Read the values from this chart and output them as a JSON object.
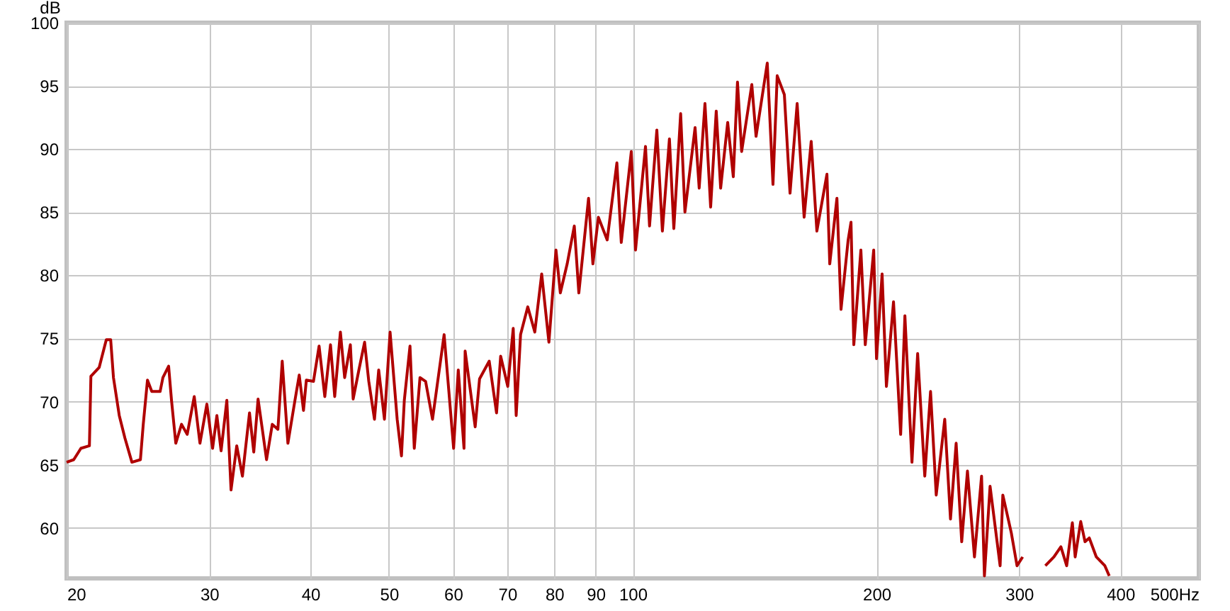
{
  "chart_data": {
    "type": "line",
    "ylabel": "dB",
    "log": "x",
    "grid": true,
    "color": "#b00000",
    "xlim": [
      20,
      500
    ],
    "xticks": [
      20,
      30,
      40,
      50,
      60,
      70,
      80,
      90,
      100,
      200,
      300,
      400,
      {
        "value": 500,
        "label": "500Hz"
      }
    ],
    "ylim": [
      56,
      100
    ],
    "yticks": [
      60,
      65,
      70,
      75,
      80,
      85,
      90,
      95,
      100
    ],
    "x": [
      20,
      20.41,
      20.83,
      21.34,
      21.43,
      21.94,
      22.39,
      22.67,
      22.85,
      23.23,
      23.61,
      24.08,
      24.67,
      24.87,
      25.17,
      25.48,
      26.09,
      26.3,
      26.73,
      26.95,
      27.28,
      27.73,
      28.18,
      28.75,
      29.22,
      29.8,
      30.29,
      30.66,
      31.03,
      31.54,
      31.92,
      32.44,
      32.97,
      33.64,
      34.05,
      34.47,
      34.89,
      35.31,
      35.89,
      36.47,
      36.92,
      37.52,
      38.28,
      38.75,
      39.22,
      39.54,
      40.35,
      41,
      41.67,
      42.35,
      42.86,
      43.56,
      44.09,
      44.81,
      45.17,
      45.91,
      46.66,
      47.22,
      47.99,
      48.57,
      49.37,
      50.17,
      51.19,
      51.82,
      52.24,
      53.09,
      53.74,
      54.62,
      55.5,
      56.6,
      58.5,
      60.1,
      60.9,
      61.9,
      62.1,
      63.9,
      64.7,
      66.5,
      67.9,
      68.7,
      70.1,
      71.2,
      71.8,
      72.7,
      74.2,
      75.7,
      77.2,
      78.8,
      80.4,
      81.4,
      83,
      84.7,
      85.8,
      88.2,
      89.3,
      90.7,
      93,
      95.6,
      96.8,
      99.6,
      100.8,
      103.7,
      104.9,
      107.1,
      108.8,
      111,
      112.4,
      114.6,
      116,
      119.4,
      120.8,
      122.8,
      124.8,
      126.8,
      128.4,
      131,
      133.1,
      134.7,
      136.3,
      140.3,
      142,
      146.6,
      149,
      150.8,
      153.9,
      156.4,
      159.6,
      162.8,
      166.1,
      168.8,
      173.7,
      175.1,
      178.7,
      180.8,
      184.5,
      186,
      187.5,
      191.3,
      193.7,
      198.4,
      200,
      203.2,
      205.7,
      209.9,
      214.2,
      216.8,
      221.2,
      224.8,
      229.4,
      233.2,
      237,
      242.8,
      246.8,
      250.8,
      254.8,
      259,
      264.2,
      269.6,
      271.8,
      276.2,
      284.2,
      286.4,
      293.4,
      298.2,
      303,
      310,
      323.2,
      331.2,
      337.8,
      343.4,
      349,
      351.8,
      357.4,
      361.8,
      366.2,
      373.6,
      382.8,
      387.6
    ],
    "values": [
      65.2,
      65.4,
      66.3,
      66.5,
      72,
      72.7,
      74.9,
      74.9,
      71.9,
      68.9,
      67.1,
      65.2,
      65.4,
      68.2,
      71.7,
      70.8,
      70.8,
      71.9,
      72.8,
      70.1,
      66.7,
      68.2,
      67.4,
      70.4,
      66.7,
      69.8,
      66.3,
      68.9,
      66.1,
      70.1,
      63,
      66.5,
      64.1,
      69.1,
      66,
      70.2,
      67.8,
      65.4,
      68.2,
      67.8,
      73.2,
      66.7,
      70.1,
      72.1,
      69.3,
      71.7,
      71.6,
      74.4,
      70.4,
      74.5,
      70.4,
      75.5,
      71.9,
      74.5,
      70.2,
      72.5,
      74.7,
      71.6,
      68.6,
      72.5,
      68.6,
      75.5,
      68.6,
      65.7,
      70.1,
      74.4,
      66.3,
      71.9,
      71.6,
      68.6,
      75.3,
      66.3,
      72.5,
      66.3,
      74,
      68,
      71.8,
      73.2,
      69.1,
      73.6,
      71.2,
      75.8,
      68.9,
      75.3,
      77.5,
      75.5,
      80.1,
      74.7,
      82,
      78.6,
      80.9,
      83.9,
      78.6,
      86.1,
      80.9,
      84.6,
      82.8,
      88.9,
      82.6,
      89.8,
      82,
      90.2,
      83.9,
      91.5,
      83.5,
      90.8,
      83.7,
      92.8,
      85,
      91.7,
      86.9,
      93.6,
      85.4,
      93,
      86.9,
      92.1,
      87.8,
      95.3,
      89.8,
      95.1,
      91,
      96.8,
      87.2,
      95.8,
      94.3,
      86.5,
      93.6,
      84.6,
      90.6,
      83.5,
      88,
      80.9,
      86.1,
      77.3,
      82.8,
      84.2,
      74.5,
      82,
      74.5,
      82,
      73.4,
      80.1,
      71.2,
      77.9,
      67.4,
      76.8,
      65.2,
      73.8,
      64.1,
      70.8,
      62.6,
      68.6,
      60.7,
      66.7,
      58.9,
      64.5,
      57.7,
      64.1,
      56.2,
      63.3,
      57,
      62.6,
      59.6,
      57,
      57.7,
      null,
      57,
      57.7,
      58.5,
      57,
      60.4,
      57.7,
      60.5,
      58.9,
      59.2,
      57.7,
      57,
      56.2
    ]
  }
}
